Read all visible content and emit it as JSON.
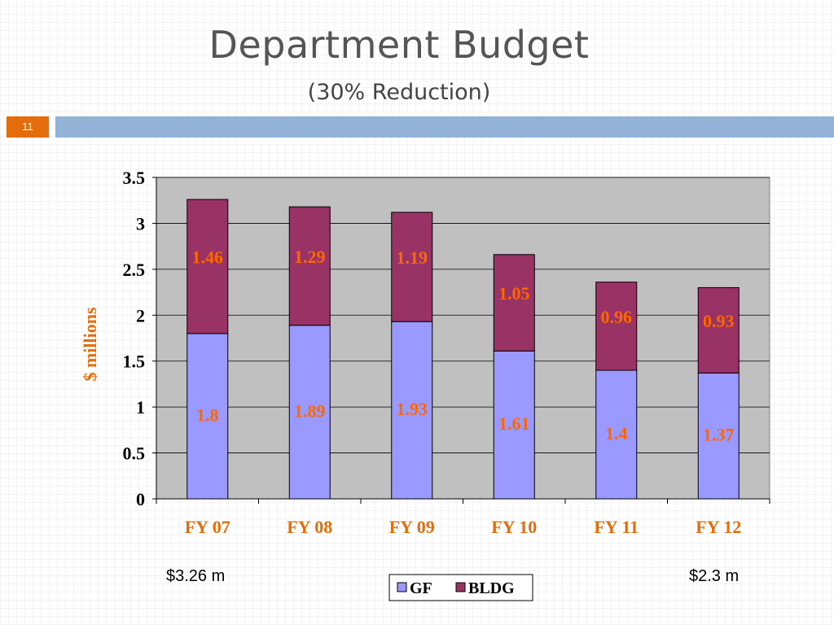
{
  "slide": {
    "title": "Department Budget",
    "subtitle": "(30% Reduction)",
    "number": "11",
    "note_left": "$3.26 m",
    "note_right": "$2.3 m"
  },
  "chart_data": {
    "type": "bar",
    "stacked": true,
    "categories": [
      "FY 07",
      "FY 08",
      "FY 09",
      "FY 10",
      "FY 11",
      "FY 12"
    ],
    "series": [
      {
        "name": "GF",
        "values": [
          1.8,
          1.89,
          1.93,
          1.61,
          1.4,
          1.37
        ],
        "color": "#9999ff"
      },
      {
        "name": "BLDG",
        "values": [
          1.46,
          1.29,
          1.19,
          1.05,
          0.96,
          0.93
        ],
        "color": "#993366"
      }
    ],
    "ylabel": "$ millions",
    "ylim": [
      0,
      3.5
    ],
    "yticks": [
      "0",
      "0.5",
      "1",
      "1.5",
      "2",
      "2.5",
      "3",
      "3.5"
    ],
    "grid": true,
    "legend_position": "bottom",
    "plot_background": "#c0c0c0",
    "label_color": "#ff6600",
    "tick_label_color": "#e46c0a"
  }
}
